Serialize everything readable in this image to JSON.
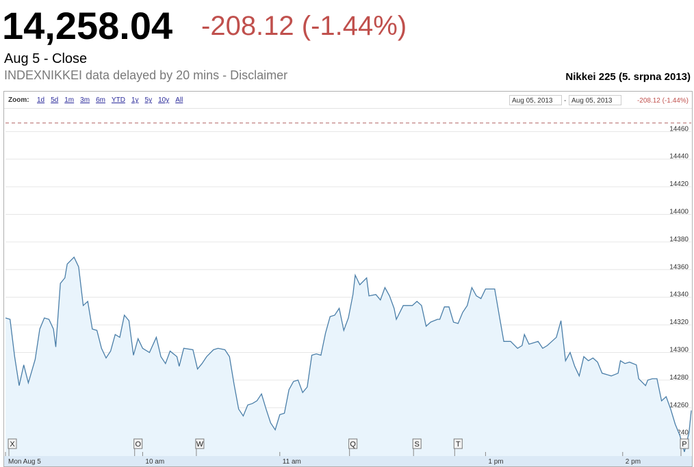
{
  "header": {
    "price": "14,258.04",
    "change": "-208.12 (-1.44%)",
    "status": "Aug 5 - Close",
    "source_note": "INDEXNIKKEI data delayed by 20 mins - Disclaimer"
  },
  "controls": {
    "zoom_label": "Zoom:",
    "zoom_options": [
      "1d",
      "5d",
      "1m",
      "3m",
      "6m",
      "YTD",
      "1y",
      "5y",
      "10y",
      "All"
    ],
    "range_start": "Aug 05, 2013",
    "range_separator": "-",
    "range_end": "Aug 05, 2013",
    "range_change": "-208.12 (-1.44%)"
  },
  "chart_data": {
    "type": "line",
    "title": "Nikkei 225 (5. srpna 2013)",
    "x": [
      0,
      2,
      4,
      6,
      8,
      10,
      13,
      15,
      17,
      19,
      21,
      22,
      24,
      26,
      27,
      30,
      32,
      34,
      36,
      38,
      40,
      42,
      44,
      46,
      48,
      50,
      52,
      54,
      56,
      58,
      60,
      63,
      66,
      68,
      70,
      72,
      75,
      76,
      78,
      82,
      84,
      86,
      88,
      91,
      93,
      96,
      98,
      100,
      102,
      104,
      106,
      108,
      110,
      112,
      114,
      116,
      118,
      120,
      122,
      124,
      126,
      128,
      130,
      132,
      134,
      136,
      138,
      140,
      142,
      144,
      146,
      148,
      150,
      152,
      153,
      155,
      158,
      159,
      162,
      164,
      166,
      168,
      170,
      171,
      174,
      176,
      178,
      180,
      182,
      184,
      186,
      189,
      190,
      192,
      194,
      196,
      198,
      200,
      202,
      204,
      206,
      208,
      210,
      211,
      214,
      216,
      218,
      220,
      221,
      224,
      226,
      227,
      229,
      231,
      233,
      235,
      237,
      239,
      241,
      243,
      245,
      247,
      249,
      251,
      253,
      255,
      257,
      259,
      261,
      263,
      265,
      268,
      269,
      271,
      273,
      276,
      277,
      280,
      281,
      283,
      285,
      287,
      289,
      291,
      293,
      295,
      297,
      299,
      300
    ],
    "values": [
      14325,
      14324,
      14297,
      14276,
      14291,
      14278,
      14295,
      14317,
      14325,
      14324,
      14317,
      14304,
      14350,
      14354,
      14364,
      14369,
      14362,
      14334,
      14337,
      14317,
      14316,
      14303,
      14296,
      14301,
      14313,
      14311,
      14327,
      14323,
      14298,
      14310,
      14303,
      14300,
      14311,
      14297,
      14292,
      14301,
      14297,
      14290,
      14303,
      14302,
      14288,
      14292,
      14297,
      14302,
      14303,
      14302,
      14297,
      14277,
      14259,
      14254,
      14262,
      14263,
      14265,
      14270,
      14259,
      14249,
      14244,
      14255,
      14256,
      14273,
      14279,
      14280,
      14271,
      14275,
      14298,
      14299,
      14298,
      14314,
      14326,
      14327,
      14332,
      14316,
      14325,
      14342,
      14356,
      14349,
      14354,
      14341,
      14342,
      14338,
      14347,
      14341,
      14332,
      14324,
      14334,
      14334,
      14334,
      14337,
      14334,
      14319,
      14322,
      14324,
      14324,
      14333,
      14333,
      14322,
      14321,
      14329,
      14334,
      14347,
      14341,
      14339,
      14346,
      14346,
      14346,
      14327,
      14308,
      14308,
      14308,
      14303,
      14305,
      14313,
      14306,
      14307,
      14308,
      14303,
      14305,
      14308,
      14311,
      14323,
      14294,
      14300,
      14290,
      14283,
      14297,
      14294,
      14296,
      14293,
      14285,
      14284,
      14283,
      14285,
      14294,
      14292,
      14293,
      14291,
      14281,
      14276,
      14280,
      14281,
      14281,
      14265,
      14268,
      14259,
      14248,
      14240,
      14228,
      14242,
      14258.04
    ],
    "color": "#4a7ea8",
    "fill_color": "#e9f4fc",
    "xlim": [
      0,
      300
    ],
    "xticks": [
      {
        "value": 0,
        "label": "Mon Aug 5"
      },
      {
        "value": 60,
        "label": "10 am"
      },
      {
        "value": 120,
        "label": "11 am"
      },
      {
        "value": 210,
        "label": "1 pm"
      },
      {
        "value": 270,
        "label": "2 pm"
      }
    ],
    "ylim": [
      14225,
      14476
    ],
    "yticks": [
      14240,
      14260,
      14280,
      14300,
      14320,
      14340,
      14360,
      14380,
      14400,
      14420,
      14440,
      14460
    ],
    "grid": true,
    "reference_line": 14466.16,
    "flags": [
      {
        "label": "X",
        "x": 3
      },
      {
        "label": "O",
        "x": 58
      },
      {
        "label": "W",
        "x": 85
      },
      {
        "label": "Q",
        "x": 152
      },
      {
        "label": "S",
        "x": 180
      },
      {
        "label": "T",
        "x": 198
      },
      {
        "label": "P",
        "x": 297
      }
    ]
  }
}
